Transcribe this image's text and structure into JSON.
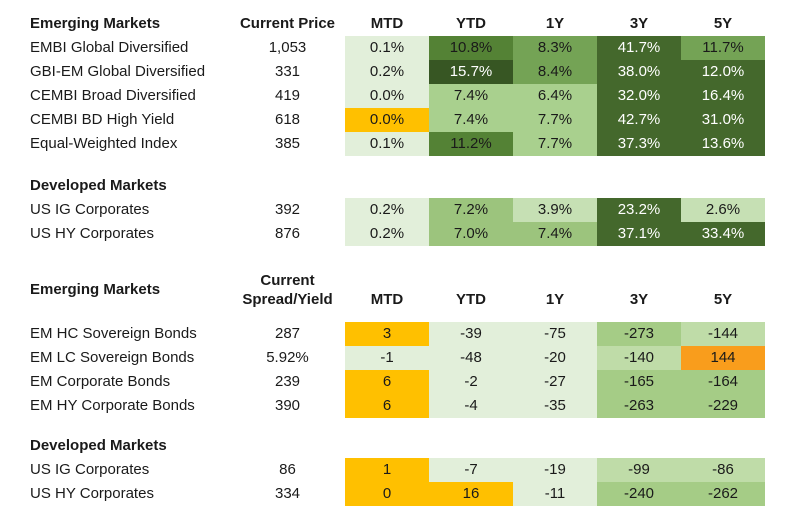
{
  "palette": {
    "green_lightest": "#E2EFDA",
    "green_light": "#C6E0B4",
    "green_mediumlight": "#A9D08E",
    "green_dm_medium": "#9CC47D",
    "green_medium": "#74A355",
    "green_mediumdark": "#548235",
    "green_dark": "#44682C",
    "green_darkest": "#375623",
    "green_t2_medium": "#A5CC86",
    "green_t2_light": "#BFDCA8",
    "gold": "#FFC000",
    "orange": "#F99D1C",
    "text_dark": "#1a1a1a",
    "text_light": "#FFFFFF"
  },
  "section1": {
    "group1_label": "Emerging Markets",
    "value_header": "Current Price",
    "period_headers": [
      "MTD",
      "YTD",
      "1Y",
      "3Y",
      "5Y"
    ],
    "em_rows": [
      {
        "label": "EMBI Global Diversified",
        "value": "1,053",
        "cells": [
          {
            "t": "0.1%",
            "bg": "#E2EFDA"
          },
          {
            "t": "10.8%",
            "bg": "#548235"
          },
          {
            "t": "8.3%",
            "bg": "#74A355"
          },
          {
            "t": "41.7%",
            "bg": "#44682C",
            "fg": "#FFFFFF"
          },
          {
            "t": "11.7%",
            "bg": "#74A355"
          }
        ]
      },
      {
        "label": "GBI-EM Global Diversified",
        "value": "331",
        "cells": [
          {
            "t": "0.2%",
            "bg": "#E2EFDA"
          },
          {
            "t": "15.7%",
            "bg": "#375623",
            "fg": "#FFFFFF"
          },
          {
            "t": "8.4%",
            "bg": "#74A355"
          },
          {
            "t": "38.0%",
            "bg": "#44682C",
            "fg": "#FFFFFF"
          },
          {
            "t": "12.0%",
            "bg": "#44682C",
            "fg": "#FFFFFF"
          }
        ]
      },
      {
        "label": "CEMBI Broad Diversified",
        "value": "419",
        "cells": [
          {
            "t": "0.0%",
            "bg": "#E2EFDA"
          },
          {
            "t": "7.4%",
            "bg": "#A9D08E"
          },
          {
            "t": "6.4%",
            "bg": "#A9D08E"
          },
          {
            "t": "32.0%",
            "bg": "#44682C",
            "fg": "#FFFFFF"
          },
          {
            "t": "16.4%",
            "bg": "#44682C",
            "fg": "#FFFFFF"
          }
        ]
      },
      {
        "label": "CEMBI BD High Yield",
        "value": "618",
        "cells": [
          {
            "t": "0.0%",
            "bg": "#FFC000"
          },
          {
            "t": "7.4%",
            "bg": "#A9D08E"
          },
          {
            "t": "7.7%",
            "bg": "#A9D08E"
          },
          {
            "t": "42.7%",
            "bg": "#44682C",
            "fg": "#FFFFFF"
          },
          {
            "t": "31.0%",
            "bg": "#44682C",
            "fg": "#FFFFFF"
          }
        ]
      },
      {
        "label": "Equal-Weighted Index",
        "value": "385",
        "cells": [
          {
            "t": "0.1%",
            "bg": "#E2EFDA"
          },
          {
            "t": "11.2%",
            "bg": "#548235"
          },
          {
            "t": "7.7%",
            "bg": "#A9D08E"
          },
          {
            "t": "37.3%",
            "bg": "#44682C",
            "fg": "#FFFFFF"
          },
          {
            "t": "13.6%",
            "bg": "#44682C",
            "fg": "#FFFFFF"
          }
        ]
      }
    ],
    "group2_label": "Developed Markets",
    "dm_rows": [
      {
        "label": "US IG Corporates",
        "value": "392",
        "cells": [
          {
            "t": "0.2%",
            "bg": "#E2EFDA"
          },
          {
            "t": "7.2%",
            "bg": "#9CC47D"
          },
          {
            "t": "3.9%",
            "bg": "#C6E0B4"
          },
          {
            "t": "23.2%",
            "bg": "#44682C",
            "fg": "#FFFFFF"
          },
          {
            "t": "2.6%",
            "bg": "#C6E0B4"
          }
        ]
      },
      {
        "label": "US HY Corporates",
        "value": "876",
        "cells": [
          {
            "t": "0.2%",
            "bg": "#E2EFDA"
          },
          {
            "t": "7.0%",
            "bg": "#9CC47D"
          },
          {
            "t": "7.4%",
            "bg": "#9CC47D"
          },
          {
            "t": "37.1%",
            "bg": "#44682C",
            "fg": "#FFFFFF"
          },
          {
            "t": "33.4%",
            "bg": "#44682C",
            "fg": "#FFFFFF"
          }
        ]
      }
    ]
  },
  "section2": {
    "group1_label": "Emerging Markets",
    "value_header_line1": "Current",
    "value_header_line2": "Spread/Yield",
    "period_headers": [
      "MTD",
      "YTD",
      "1Y",
      "3Y",
      "5Y"
    ],
    "em_rows": [
      {
        "label": "EM HC Sovereign Bonds",
        "value": "287",
        "cells": [
          {
            "t": "3",
            "bg": "#FFC000"
          },
          {
            "t": "-39",
            "bg": "#E2EFDA"
          },
          {
            "t": "-75",
            "bg": "#E2EFDA"
          },
          {
            "t": "-273",
            "bg": "#A5CC86"
          },
          {
            "t": "-144",
            "bg": "#BFDCA8"
          }
        ]
      },
      {
        "label": "EM LC Sovereign Bonds",
        "value": "5.92%",
        "cells": [
          {
            "t": "-1",
            "bg": "#E2EFDA"
          },
          {
            "t": "-48",
            "bg": "#E2EFDA"
          },
          {
            "t": "-20",
            "bg": "#E2EFDA"
          },
          {
            "t": "-140",
            "bg": "#BFDCA8"
          },
          {
            "t": "144",
            "bg": "#F99D1C"
          }
        ]
      },
      {
        "label": "EM Corporate Bonds",
        "value": "239",
        "cells": [
          {
            "t": "6",
            "bg": "#FFC000"
          },
          {
            "t": "-2",
            "bg": "#E2EFDA"
          },
          {
            "t": "-27",
            "bg": "#E2EFDA"
          },
          {
            "t": "-165",
            "bg": "#A5CC86"
          },
          {
            "t": "-164",
            "bg": "#A5CC86"
          }
        ]
      },
      {
        "label": "EM HY Corporate Bonds",
        "value": "390",
        "cells": [
          {
            "t": "6",
            "bg": "#FFC000"
          },
          {
            "t": "-4",
            "bg": "#E2EFDA"
          },
          {
            "t": "-35",
            "bg": "#E2EFDA"
          },
          {
            "t": "-263",
            "bg": "#A5CC86"
          },
          {
            "t": "-229",
            "bg": "#A5CC86"
          }
        ]
      }
    ],
    "group2_label": "Developed Markets",
    "dm_rows": [
      {
        "label": "US IG Corporates",
        "value": "86",
        "cells": [
          {
            "t": "1",
            "bg": "#FFC000"
          },
          {
            "t": "-7",
            "bg": "#E2EFDA"
          },
          {
            "t": "-19",
            "bg": "#E2EFDA"
          },
          {
            "t": "-99",
            "bg": "#BFDCA8"
          },
          {
            "t": "-86",
            "bg": "#BFDCA8"
          }
        ]
      },
      {
        "label": "US HY Corporates",
        "value": "334",
        "cells": [
          {
            "t": "0",
            "bg": "#FFC000"
          },
          {
            "t": "16",
            "bg": "#FFC000"
          },
          {
            "t": "-11",
            "bg": "#E2EFDA"
          },
          {
            "t": "-240",
            "bg": "#A5CC86"
          },
          {
            "t": "-262",
            "bg": "#A5CC86"
          }
        ]
      }
    ]
  },
  "chart_data": [
    {
      "type": "heatmap",
      "columns": [
        "MTD",
        "YTD",
        "1Y",
        "3Y",
        "5Y"
      ],
      "value_column": "Current Price",
      "units": "percent",
      "groups": [
        {
          "label": "Emerging Markets",
          "rows": [
            {
              "label": "EMBI Global Diversified",
              "current_price": "1,053",
              "values": [
                0.1,
                10.8,
                8.3,
                41.7,
                11.7
              ]
            },
            {
              "label": "GBI-EM Global Diversified",
              "current_price": "331",
              "values": [
                0.2,
                15.7,
                8.4,
                38.0,
                12.0
              ]
            },
            {
              "label": "CEMBI Broad Diversified",
              "current_price": "419",
              "values": [
                0.0,
                7.4,
                6.4,
                32.0,
                16.4
              ]
            },
            {
              "label": "CEMBI BD High Yield",
              "current_price": "618",
              "values": [
                0.0,
                7.4,
                7.7,
                42.7,
                31.0
              ]
            },
            {
              "label": "Equal-Weighted Index",
              "current_price": "385",
              "values": [
                0.1,
                11.2,
                7.7,
                37.3,
                13.6
              ]
            }
          ]
        },
        {
          "label": "Developed Markets",
          "rows": [
            {
              "label": "US IG Corporates",
              "current_price": "392",
              "values": [
                0.2,
                7.2,
                3.9,
                23.2,
                2.6
              ]
            },
            {
              "label": "US HY Corporates",
              "current_price": "876",
              "values": [
                0.2,
                7.0,
                7.4,
                37.1,
                33.4
              ]
            }
          ]
        }
      ]
    },
    {
      "type": "heatmap",
      "columns": [
        "MTD",
        "YTD",
        "1Y",
        "3Y",
        "5Y"
      ],
      "value_column": "Current Spread/Yield",
      "units": "basis points change",
      "groups": [
        {
          "label": "Emerging Markets",
          "rows": [
            {
              "label": "EM HC Sovereign Bonds",
              "current": "287",
              "values": [
                3,
                -39,
                -75,
                -273,
                -144
              ]
            },
            {
              "label": "EM LC Sovereign Bonds",
              "current": "5.92%",
              "values": [
                -1,
                -48,
                -20,
                -140,
                144
              ]
            },
            {
              "label": "EM Corporate Bonds",
              "current": "239",
              "values": [
                6,
                -2,
                -27,
                -165,
                -164
              ]
            },
            {
              "label": "EM HY Corporate Bonds",
              "current": "390",
              "values": [
                6,
                -4,
                -35,
                -263,
                -229
              ]
            }
          ]
        },
        {
          "label": "Developed Markets",
          "rows": [
            {
              "label": "US IG Corporates",
              "current": "86",
              "values": [
                1,
                -7,
                -19,
                -99,
                -86
              ]
            },
            {
              "label": "US HY Corporates",
              "current": "334",
              "values": [
                0,
                16,
                -11,
                -240,
                -262
              ]
            }
          ]
        }
      ]
    }
  ]
}
